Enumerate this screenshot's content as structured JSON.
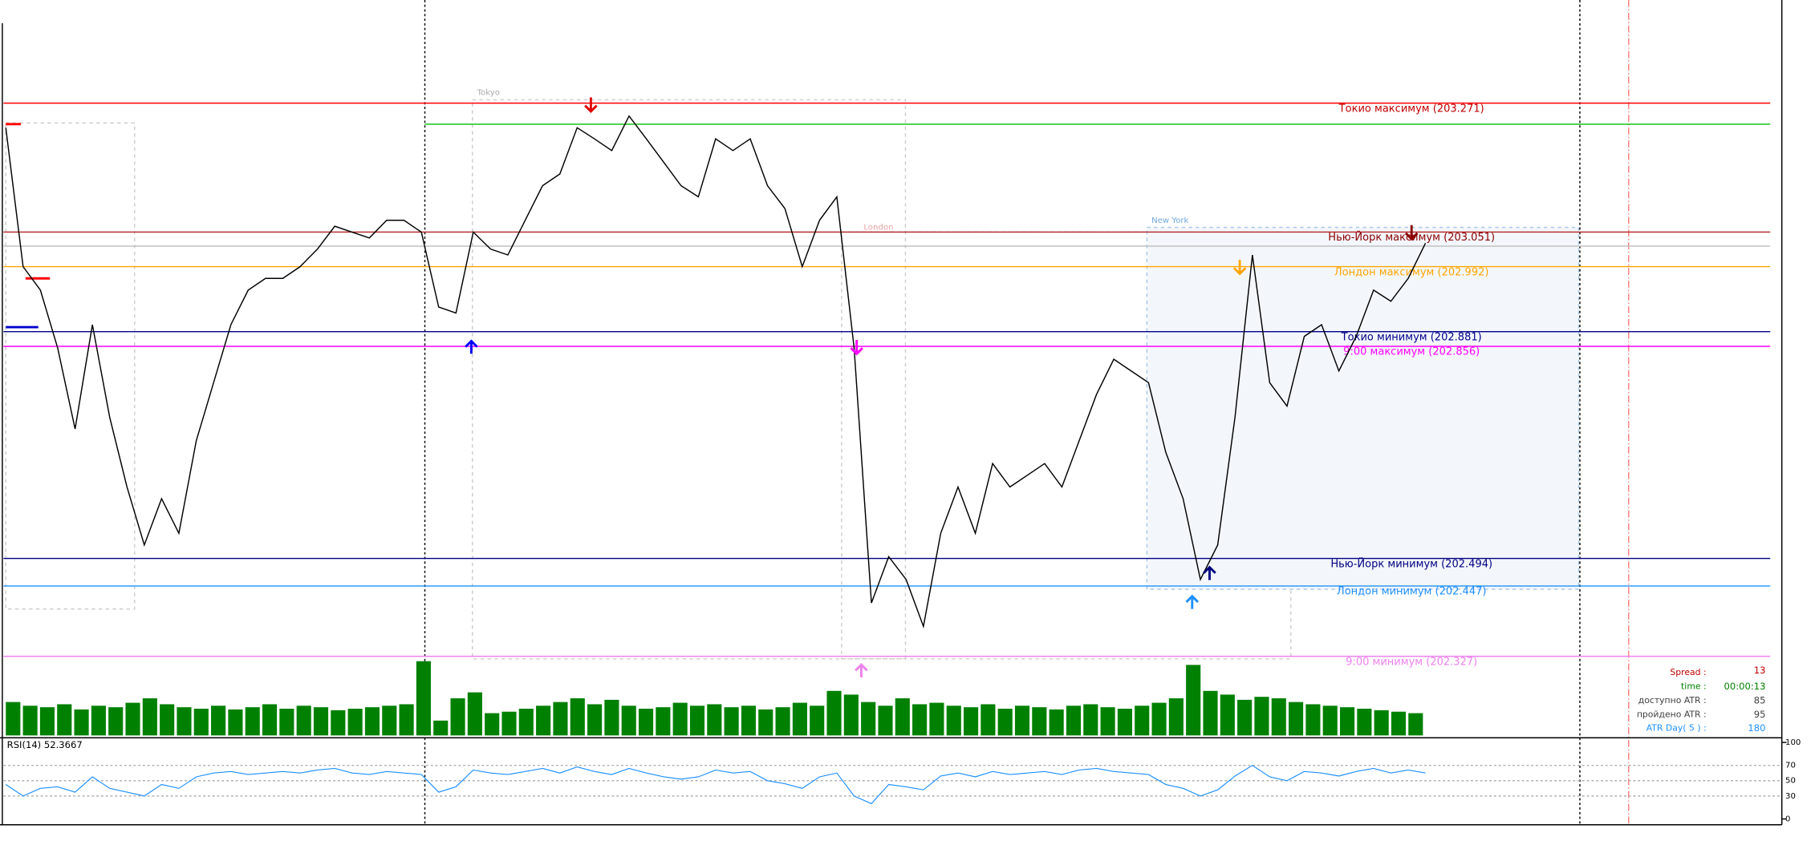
{
  "chart_data": {
    "type": "line",
    "ylim": [
      202.192,
      203.447
    ],
    "price": {
      "color": "#000000",
      "values": [
        203.229,
        202.992,
        202.952,
        202.853,
        202.715,
        202.893,
        202.735,
        202.616,
        202.517,
        202.596,
        202.537,
        202.695,
        202.794,
        202.893,
        202.952,
        202.972,
        202.972,
        202.992,
        203.022,
        203.061,
        203.051,
        203.041,
        203.071,
        203.071,
        203.051,
        202.923,
        202.913,
        203.051,
        203.022,
        203.012,
        203.071,
        203.13,
        203.15,
        203.229,
        203.21,
        203.19,
        203.249,
        203.21,
        203.17,
        203.13,
        203.111,
        203.21,
        203.19,
        203.21,
        203.13,
        203.091,
        202.992,
        203.071,
        203.111,
        202.853,
        202.418,
        202.497,
        202.458,
        202.378,
        202.537,
        202.616,
        202.537,
        202.656,
        202.616,
        202.636,
        202.656,
        202.616,
        202.695,
        202.774,
        202.834,
        202.814,
        202.794,
        202.675,
        202.596,
        202.458,
        202.517,
        202.735,
        203.012,
        202.794,
        202.754,
        202.873,
        202.893,
        202.814,
        202.873,
        202.952,
        202.933,
        202.972,
        203.032
      ]
    },
    "levels": [
      {
        "label": "Токио максимум (203.271)",
        "value": 203.271,
        "color": "#ff0000",
        "label_color": "#c00000"
      },
      {
        "value": 203.235,
        "color": "#00c000"
      },
      {
        "label": "Нью-Йорк максимум (203.051)",
        "value": 203.051,
        "color": "#b22222",
        "label_color": "#8b0000"
      },
      {
        "value": 203.027,
        "color": "#c0c0c0"
      },
      {
        "label": "Лондон максимум (202.992)",
        "value": 202.992,
        "color": "#ffa500",
        "label_color": "#ffa500"
      },
      {
        "label": "Токио минимум (202.881)",
        "value": 202.881,
        "color": "#00008b",
        "label_color": "#00008b"
      },
      {
        "label": "9:00 максимум (202.856)",
        "value": 202.856,
        "color": "#ff00ff",
        "label_color": "#ff00ff"
      },
      {
        "label": "Нью-Йорк минимум (202.494)",
        "value": 202.494,
        "color": "#000080",
        "label_color": "#000080"
      },
      {
        "label": "Лондон минимум (202.447)",
        "value": 202.447,
        "color": "#1e90ff",
        "label_color": "#1e90ff"
      },
      {
        "label": "9:00 минимум (202.327)",
        "value": 202.327,
        "color": "#ee82ee",
        "label_color": "#ee82ee"
      }
    ],
    "sessions": [
      "Tokyo",
      "London",
      "New York"
    ],
    "volume": {
      "color": "#008000",
      "ylim": [
        0,
        100
      ],
      "values": [
        45,
        40,
        38,
        42,
        35,
        40,
        38,
        44,
        50,
        42,
        38,
        36,
        40,
        35,
        38,
        42,
        36,
        40,
        38,
        34,
        36,
        38,
        40,
        42,
        100,
        20,
        50,
        58,
        30,
        32,
        36,
        40,
        45,
        50,
        42,
        48,
        40,
        36,
        38,
        44,
        40,
        42,
        38,
        40,
        35,
        38,
        44,
        40,
        60,
        55,
        45,
        40,
        50,
        42,
        44,
        40,
        38,
        42,
        36,
        40,
        38,
        35,
        40,
        42,
        38,
        36,
        40,
        44,
        50,
        95,
        60,
        55,
        48,
        52,
        50,
        45,
        42,
        40,
        38,
        36,
        34,
        32,
        30
      ]
    },
    "rsi": {
      "label": "RSI(14)",
      "value": 52.3667,
      "color": "#1e90ff",
      "ylim": [
        0,
        100
      ],
      "yticks": [
        0,
        30,
        50,
        70,
        100
      ],
      "values": [
        45,
        30,
        40,
        42,
        35,
        55,
        40,
        35,
        30,
        45,
        40,
        55,
        60,
        62,
        58,
        60,
        62,
        60,
        64,
        66,
        60,
        58,
        62,
        60,
        58,
        35,
        42,
        64,
        60,
        58,
        62,
        66,
        60,
        68,
        62,
        58,
        66,
        60,
        55,
        52,
        55,
        64,
        60,
        62,
        50,
        46,
        40,
        55,
        60,
        30,
        20,
        45,
        42,
        38,
        56,
        60,
        55,
        62,
        58,
        60,
        62,
        58,
        64,
        66,
        62,
        60,
        58,
        45,
        40,
        30,
        38,
        56,
        70,
        55,
        50,
        62,
        60,
        56,
        62,
        66,
        60,
        64,
        60
      ]
    },
    "info": [
      {
        "label": "Spread :",
        "value": "13",
        "color": "#c00000"
      },
      {
        "label": "time :",
        "value": "00:00:13",
        "color": "#008000"
      },
      {
        "label": "доступно ATR :",
        "value": "85",
        "color": "#404040"
      },
      {
        "label": "пройдено ATR :",
        "value": "95",
        "color": "#404040"
      },
      {
        "label": "ATR Day( 5 ) :",
        "value": "180",
        "color": "#1e90ff"
      }
    ]
  }
}
